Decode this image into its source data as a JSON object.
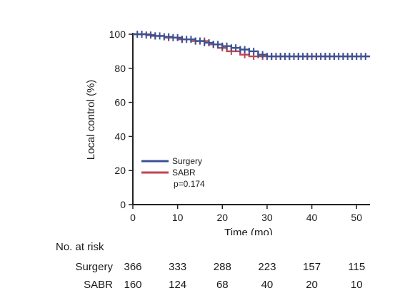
{
  "chart_data": {
    "type": "line",
    "title": "",
    "xlabel": "Time (mo)",
    "ylabel": "Local control (%)",
    "xlim": [
      0,
      53
    ],
    "ylim": [
      0,
      100
    ],
    "xticks": [
      0,
      10,
      20,
      30,
      40,
      50
    ],
    "yticks": [
      0,
      20,
      40,
      60,
      80,
      100
    ],
    "grid": false,
    "legend_position": "bottom-left",
    "annotation": "p=0.174",
    "colors": {
      "Surgery": "#3a5293",
      "SABR": "#c0454f"
    },
    "series": [
      {
        "name": "Surgery",
        "step_points": [
          [
            0,
            100
          ],
          [
            3,
            99.5
          ],
          [
            5,
            99
          ],
          [
            7,
            98.5
          ],
          [
            9,
            98
          ],
          [
            11,
            97
          ],
          [
            14,
            96
          ],
          [
            16,
            95
          ],
          [
            18,
            94
          ],
          [
            20,
            93
          ],
          [
            22,
            92
          ],
          [
            24,
            91
          ],
          [
            26,
            90
          ],
          [
            28,
            88
          ],
          [
            30,
            87
          ],
          [
            53,
            87
          ]
        ],
        "censor_x": [
          1,
          2,
          3,
          4,
          5,
          6,
          7,
          8,
          9,
          10,
          11,
          12,
          13,
          14,
          15,
          16,
          17,
          18,
          19,
          20,
          21,
          22,
          23,
          24,
          25,
          26,
          27,
          28,
          29,
          30,
          31,
          32,
          33,
          34,
          35,
          36,
          37,
          38,
          39,
          40,
          41,
          42,
          43,
          44,
          45,
          46,
          47,
          48,
          49,
          50,
          51,
          52
        ]
      },
      {
        "name": "SABR",
        "step_points": [
          [
            0,
            100
          ],
          [
            4,
            99
          ],
          [
            7,
            98
          ],
          [
            10,
            97
          ],
          [
            13,
            96
          ],
          [
            17,
            94
          ],
          [
            19,
            92
          ],
          [
            21,
            90
          ],
          [
            24,
            88
          ],
          [
            26,
            87
          ],
          [
            53,
            87
          ]
        ],
        "censor_x": [
          2,
          5,
          8,
          11,
          14,
          16,
          18,
          20,
          22,
          25,
          27,
          29,
          31,
          33,
          35,
          37,
          39,
          41,
          43,
          45,
          47,
          49,
          51
        ]
      }
    ]
  },
  "risk_table": {
    "title": "No. at risk",
    "timepoints": [
      0,
      10,
      20,
      30,
      40,
      50
    ],
    "rows": [
      {
        "label": "Surgery",
        "values": [
          "366",
          "333",
          "288",
          "223",
          "157",
          "115"
        ]
      },
      {
        "label": "SABR",
        "values": [
          "160",
          "124",
          "68",
          "40",
          "20",
          "10"
        ]
      }
    ]
  }
}
